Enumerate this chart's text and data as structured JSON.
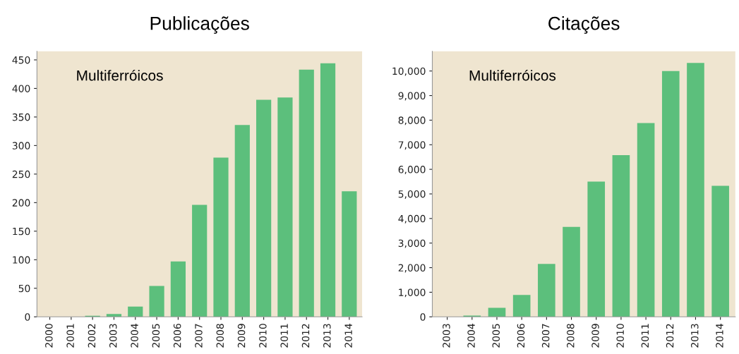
{
  "chart_data": [
    {
      "type": "bar",
      "title": "Publicações",
      "annotations": [
        "Multiferróicos"
      ],
      "categories": [
        "2000",
        "2001",
        "2002",
        "2003",
        "2004",
        "2005",
        "2006",
        "2007",
        "2008",
        "2009",
        "2010",
        "2011",
        "2012",
        "2013",
        "2014"
      ],
      "values": [
        0,
        0,
        2,
        5,
        18,
        54,
        97,
        196,
        279,
        336,
        380,
        384,
        433,
        444,
        220
      ],
      "color": "#5cbf7c",
      "ylim": [
        0,
        465
      ],
      "yticks": [
        0,
        50,
        100,
        150,
        200,
        250,
        300,
        350,
        400,
        450
      ],
      "grid": false
    },
    {
      "type": "bar",
      "title": "Citações",
      "annotations": [
        "Multiferróicos"
      ],
      "categories": [
        "2003",
        "2004",
        "2005",
        "2006",
        "2007",
        "2008",
        "2009",
        "2010",
        "2011",
        "2012",
        "2013",
        "2014"
      ],
      "values": [
        0,
        50,
        370,
        890,
        2150,
        3660,
        5500,
        6580,
        7880,
        10000,
        10330,
        5330
      ],
      "color": "#5cbf7c",
      "ylim": [
        0,
        10800
      ],
      "yticks": [
        {
          "value": 0,
          "label": "0"
        },
        {
          "value": 1000,
          "label": "1,000"
        },
        {
          "value": 2000,
          "label": "2,000"
        },
        {
          "value": 3000,
          "label": "3,000"
        },
        {
          "value": 4000,
          "label": "4,000"
        },
        {
          "value": 5000,
          "label": "5,000"
        },
        {
          "value": 6000,
          "label": "6,000"
        },
        {
          "value": 7000,
          "label": "7,000"
        },
        {
          "value": 8000,
          "label": "8,000"
        },
        {
          "value": 9000,
          "label": "9,000"
        },
        {
          "value": 10000,
          "label": "10,000"
        }
      ],
      "grid": false
    }
  ]
}
